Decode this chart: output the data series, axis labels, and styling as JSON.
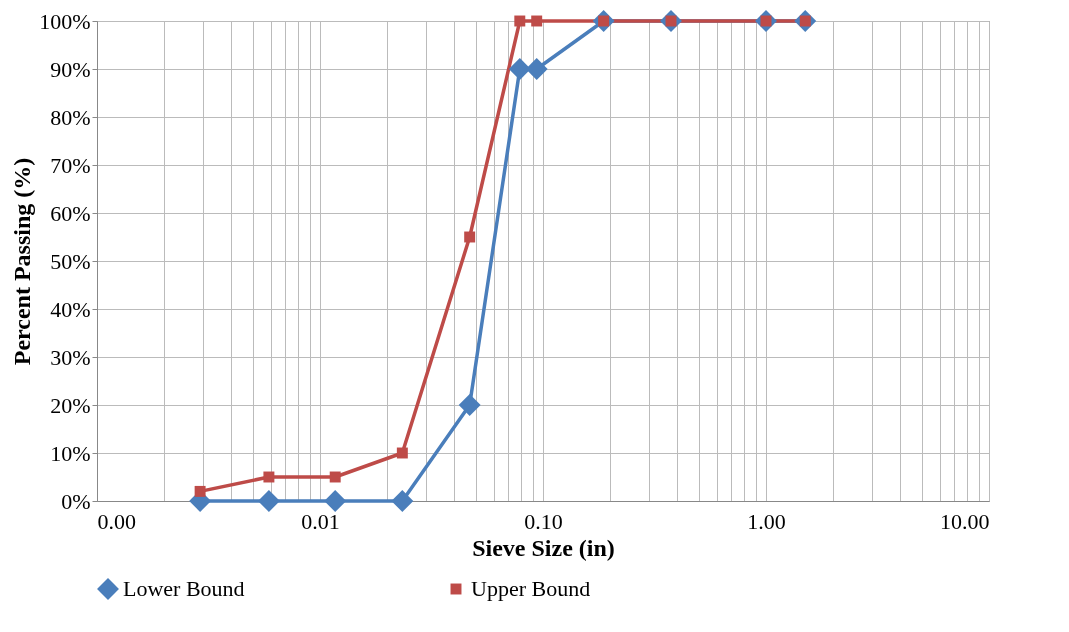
{
  "chart_data": {
    "type": "line",
    "xlabel": "Sieve Size (in)",
    "ylabel": "Percent Passing (%)",
    "log": "x",
    "grid": true,
    "legend": "bottom",
    "line_style": "solid",
    "xlim": [
      0.001,
      10
    ],
    "ylim": [
      0,
      100
    ],
    "xticks": [
      {
        "value": 0.001,
        "label": "0.00"
      },
      {
        "value": 0.002,
        "label": null
      },
      {
        "value": 0.003,
        "label": null
      },
      {
        "value": 0.004,
        "label": null
      },
      {
        "value": 0.005,
        "label": null
      },
      {
        "value": 0.006,
        "label": null
      },
      {
        "value": 0.007,
        "label": null
      },
      {
        "value": 0.008,
        "label": null
      },
      {
        "value": 0.009,
        "label": null
      },
      {
        "value": 0.01,
        "label": "0.01"
      },
      {
        "value": 0.02,
        "label": null
      },
      {
        "value": 0.03,
        "label": null
      },
      {
        "value": 0.04,
        "label": null
      },
      {
        "value": 0.05,
        "label": null
      },
      {
        "value": 0.06,
        "label": null
      },
      {
        "value": 0.07,
        "label": null
      },
      {
        "value": 0.08,
        "label": null
      },
      {
        "value": 0.09,
        "label": null
      },
      {
        "value": 0.1,
        "label": "0.10"
      },
      {
        "value": 0.2,
        "label": null
      },
      {
        "value": 0.3,
        "label": null
      },
      {
        "value": 0.4,
        "label": null
      },
      {
        "value": 0.5,
        "label": null
      },
      {
        "value": 0.6,
        "label": null
      },
      {
        "value": 0.7,
        "label": null
      },
      {
        "value": 0.8,
        "label": null
      },
      {
        "value": 0.9,
        "label": null
      },
      {
        "value": 1,
        "label": "1.00"
      },
      {
        "value": 2,
        "label": null
      },
      {
        "value": 3,
        "label": null
      },
      {
        "value": 4,
        "label": null
      },
      {
        "value": 5,
        "label": null
      },
      {
        "value": 6,
        "label": null
      },
      {
        "value": 7,
        "label": null
      },
      {
        "value": 8,
        "label": null
      },
      {
        "value": 9,
        "label": null
      },
      {
        "value": 10,
        "label": "10.00"
      }
    ],
    "yticks": [
      {
        "value": 0,
        "label": "0%"
      },
      {
        "value": 10,
        "label": "10%"
      },
      {
        "value": 20,
        "label": "20%"
      },
      {
        "value": 30,
        "label": "30%"
      },
      {
        "value": 40,
        "label": "40%"
      },
      {
        "value": 50,
        "label": "50%"
      },
      {
        "value": 60,
        "label": "60%"
      },
      {
        "value": 70,
        "label": "70%"
      },
      {
        "value": 80,
        "label": "80%"
      },
      {
        "value": 90,
        "label": "90%"
      },
      {
        "value": 100,
        "label": "100%"
      }
    ],
    "x": [
      0.0029,
      0.0059,
      0.0117,
      0.0234,
      0.0469,
      0.0787,
      0.0937,
      0.187,
      0.375,
      1,
      1.5
    ],
    "series": [
      {
        "name": "Lower Bound",
        "color": "#4a7ebb",
        "marker": "diamond",
        "values": [
          0,
          0,
          0,
          0,
          20,
          90,
          90,
          100,
          100,
          100,
          100
        ]
      },
      {
        "name": "Upper Bound",
        "color": "#be4b48",
        "marker": "square",
        "values": [
          2,
          5,
          5,
          10,
          55,
          100,
          100,
          100,
          100,
          100,
          100
        ]
      }
    ]
  }
}
